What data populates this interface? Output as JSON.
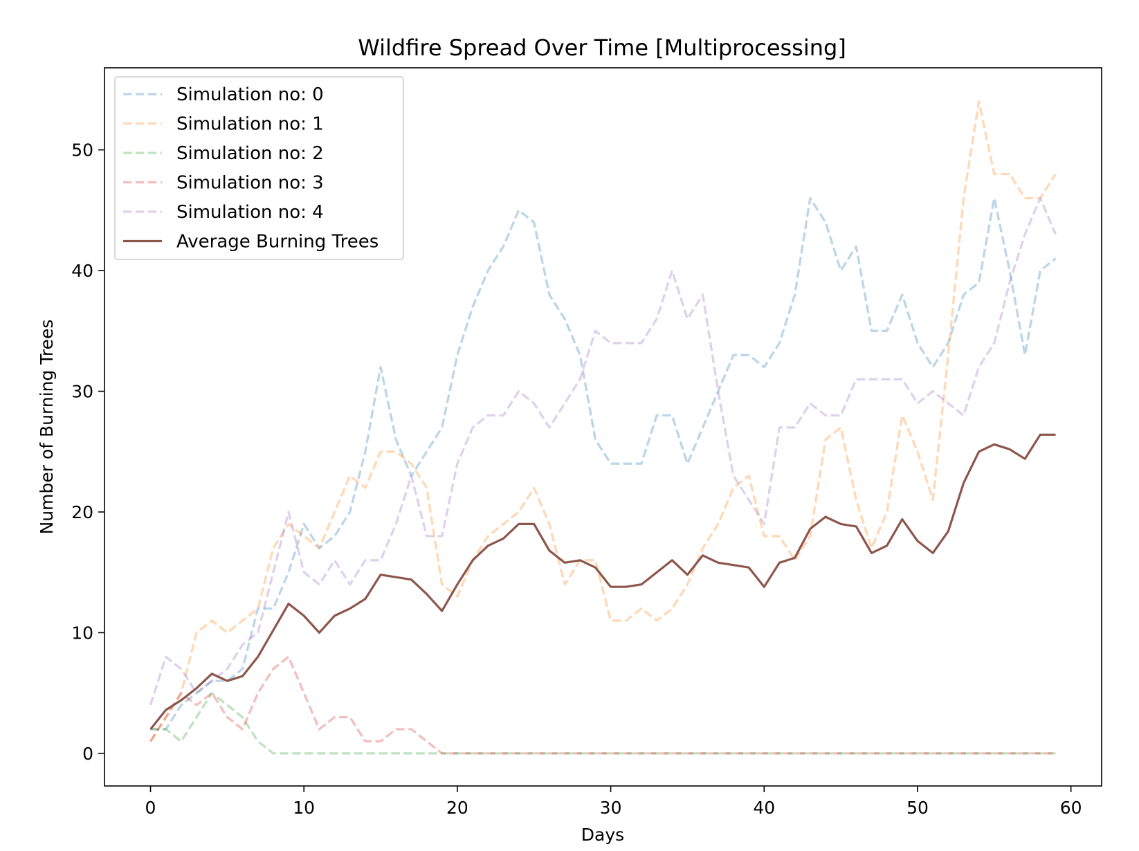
{
  "chart_data": {
    "type": "line",
    "title": "Wildfire Spread Over Time [Multiprocessing]",
    "xlabel": "Days",
    "ylabel": "Number of Burning Trees",
    "xlim": [
      -3,
      62
    ],
    "ylim": [
      -2.7,
      56.8
    ],
    "x_ticks": [
      0,
      10,
      20,
      30,
      40,
      50,
      60
    ],
    "y_ticks": [
      0,
      10,
      20,
      30,
      40,
      50
    ],
    "grid": false,
    "legend_position": "upper left",
    "x": [
      0,
      1,
      2,
      3,
      4,
      5,
      6,
      7,
      8,
      9,
      10,
      11,
      12,
      13,
      14,
      15,
      16,
      17,
      18,
      19,
      20,
      21,
      22,
      23,
      24,
      25,
      26,
      27,
      28,
      29,
      30,
      31,
      32,
      33,
      34,
      35,
      36,
      37,
      38,
      39,
      40,
      41,
      42,
      43,
      44,
      45,
      46,
      47,
      48,
      49,
      50,
      51,
      52,
      53,
      54,
      55,
      56,
      57,
      58,
      59
    ],
    "series": [
      {
        "name": "Simulation no: 0",
        "color": "#1f77b4",
        "style": "dashed",
        "values": [
          2,
          2,
          4,
          5,
          6,
          6,
          7,
          12,
          12,
          15,
          19,
          17,
          18,
          20,
          25,
          32,
          26,
          23,
          25,
          27,
          33,
          37,
          40,
          42,
          45,
          44,
          38,
          36,
          33,
          26,
          24,
          24,
          24,
          28,
          28,
          24,
          27,
          30,
          33,
          33,
          32,
          34,
          38,
          46,
          44,
          40,
          42,
          35,
          35,
          38,
          34,
          32,
          34,
          38,
          39,
          46,
          40,
          33,
          40,
          41
        ]
      },
      {
        "name": "Simulation no: 1",
        "color": "#ff7f0e",
        "style": "dashed",
        "values": [
          1,
          3,
          5,
          10,
          11,
          10,
          11,
          12,
          17,
          19,
          18,
          17,
          20,
          23,
          22,
          25,
          25,
          24,
          22,
          14,
          13,
          16,
          18,
          19,
          20,
          22,
          19,
          14,
          16,
          16,
          11,
          11,
          12,
          11,
          12,
          14,
          17,
          19,
          22,
          23,
          18,
          18,
          16,
          18,
          26,
          27,
          21,
          17,
          20,
          28,
          25,
          21,
          33,
          46,
          54,
          48,
          48,
          46,
          46,
          48
        ]
      },
      {
        "name": "Simulation no: 2",
        "color": "#2ca02c",
        "style": "dashed",
        "values": [
          2,
          2,
          1,
          3,
          5,
          4,
          3,
          1,
          0,
          0,
          0,
          0,
          0,
          0,
          0,
          0,
          0,
          0,
          0,
          0,
          0,
          0,
          0,
          0,
          0,
          0,
          0,
          0,
          0,
          0,
          0,
          0,
          0,
          0,
          0,
          0,
          0,
          0,
          0,
          0,
          0,
          0,
          0,
          0,
          0,
          0,
          0,
          0,
          0,
          0,
          0,
          0,
          0,
          0,
          0,
          0,
          0,
          0,
          0,
          0
        ]
      },
      {
        "name": "Simulation no: 3",
        "color": "#d62728",
        "style": "dashed",
        "values": [
          1,
          3,
          5,
          4,
          5,
          3,
          2,
          5,
          7,
          8,
          5,
          2,
          3,
          3,
          1,
          1,
          2,
          2,
          1,
          0,
          0,
          0,
          0,
          0,
          0,
          0,
          0,
          0,
          0,
          0,
          0,
          0,
          0,
          0,
          0,
          0,
          0,
          0,
          0,
          0,
          0,
          0,
          0,
          0,
          0,
          0,
          0,
          0,
          0,
          0,
          0,
          0,
          0,
          0,
          0,
          0,
          0,
          0,
          0,
          0
        ]
      },
      {
        "name": "Simulation no: 4",
        "color": "#9467bd",
        "style": "dashed",
        "values": [
          4,
          8,
          7,
          5,
          6,
          7,
          9,
          10,
          15,
          20,
          15,
          14,
          16,
          14,
          16,
          16,
          19,
          23,
          18,
          18,
          24,
          27,
          28,
          28,
          30,
          29,
          27,
          29,
          31,
          35,
          34,
          34,
          34,
          36,
          40,
          36,
          38,
          30,
          23,
          21,
          19,
          27,
          27,
          29,
          28,
          28,
          31,
          31,
          31,
          31,
          29,
          30,
          29,
          28,
          32,
          34,
          39,
          43,
          46,
          43
        ]
      },
      {
        "name": "Average Burning Trees",
        "color": "#8c564b",
        "style": "solid",
        "values": [
          2.0,
          3.6,
          4.4,
          5.4,
          6.6,
          6.0,
          6.4,
          8.0,
          10.2,
          12.4,
          11.4,
          10.0,
          11.4,
          12.0,
          12.8,
          14.8,
          14.6,
          14.4,
          13.2,
          11.8,
          14.0,
          16.0,
          17.2,
          17.8,
          19.0,
          19.0,
          16.8,
          15.8,
          16.0,
          15.4,
          13.8,
          13.8,
          14.0,
          15.0,
          16.0,
          14.8,
          16.4,
          15.8,
          15.6,
          15.4,
          13.8,
          15.8,
          16.2,
          18.6,
          19.6,
          19.0,
          18.8,
          16.6,
          17.2,
          19.4,
          17.6,
          16.6,
          18.4,
          22.4,
          25.0,
          25.6,
          25.2,
          24.4,
          26.4,
          26.4
        ]
      }
    ]
  }
}
